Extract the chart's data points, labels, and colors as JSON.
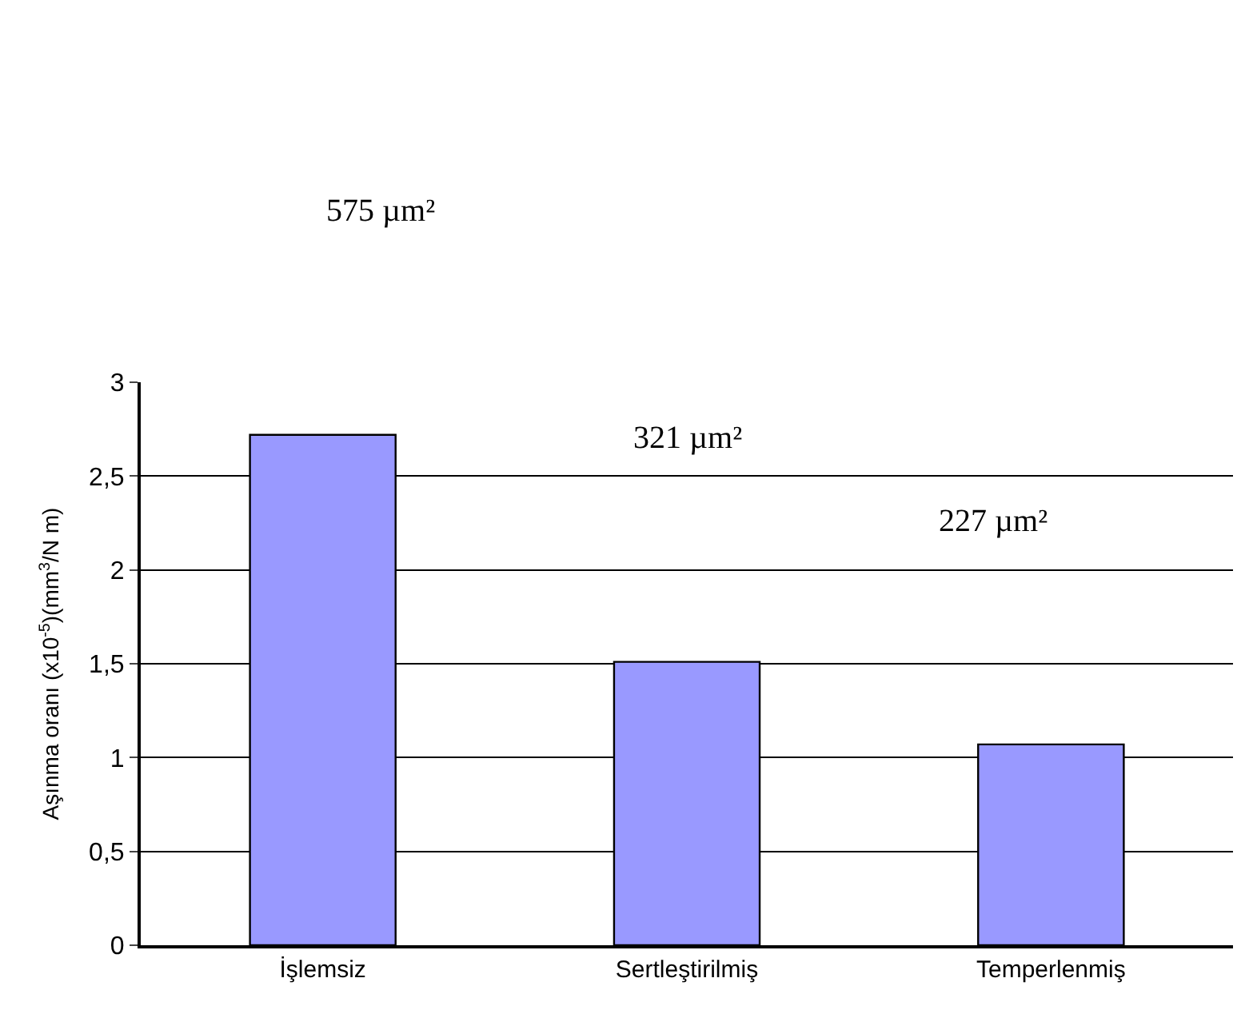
{
  "chart_data": {
    "type": "bar",
    "ylabel": "Aşınma oranı (x10$^{-5}$)(mm$^{3}$/N m)",
    "categories": [
      "İşlemsiz",
      "Sertleştirilmiş",
      "Temperlenmiş"
    ],
    "values": [
      2.72,
      1.51,
      1.07
    ],
    "color": "#9999ff",
    "ylim": [
      0,
      3
    ],
    "yticks": [
      0,
      {
        "value": 0.5,
        "label": "0,5"
      },
      1,
      {
        "value": 1.5,
        "label": "1,5"
      },
      2,
      {
        "value": 2.5,
        "label": "2,5"
      },
      3
    ],
    "grid": "y",
    "annotations": [
      "575 µm²",
      "321 µm²",
      "227 µm²"
    ]
  }
}
